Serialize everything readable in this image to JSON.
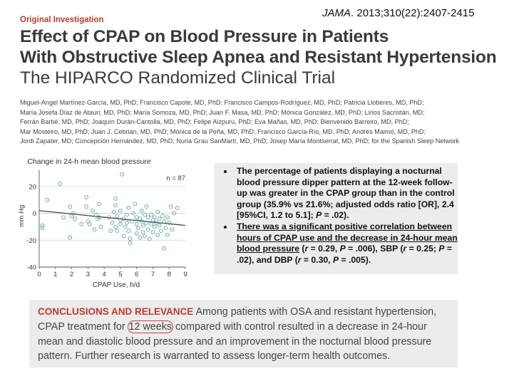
{
  "header": {
    "label": "Original Investigation",
    "citation_journal": "JAMA",
    "citation_rest": ". 2013;310(22):2407-2415",
    "title_line1": "Effect of CPAP on Blood Pressure in Patients",
    "title_line2": "With Obstructive Sleep Apnea and Resistant Hypertension",
    "subtitle": "The HIPARCO Randomized Clinical Trial"
  },
  "authors": [
    "Miguel-Angel Martínez-García, MD, PhD; Francisco Capote, MD, PhD; Francisco Campos-Rodríguez, MD, PhD; Patricia Lloberes, MD, PhD;",
    "María Josefa Díaz de Atauri, MD, PhD; María Somoza, MD, PhD; Juan F. Masa, MD, PhD; Mónica González, MD, PhD; Lirios Sacristán, MD;",
    "Ferrán Barbé, MD, PhD; Joaquín Durán-Cantolla, MD, PhD; Felipe Aizpuru, PhD; Eva Mañas, MD, PhD; Bienvenido Barreiro, MD, PhD;",
    "Mar Mosteiro, MD, PhD; Juan J. Cebrián, MD, PhD; Mónica de la Peña, MD, PhD; Francisco García-Río, MD, PhD; Andrés Maimó, MD, PhD;",
    "Jordi Zapater, MD; Concepción Hernández, MD, PhD; Nuria Grau SanMartí, MD, PhD; Josep María Montserrat, MD, PhD; for the Spanish Sleep Network"
  ],
  "bullets": [
    {
      "parts": [
        {
          "text": "The percentage of patients displaying a nocturnal blood pressure dipper pattern at the 12-week follow-up was greater in the CPAP group than in the control group (35.9% vs 21.6%; adjusted odds ratio [OR], 2.4 [95%CI, 1.2 to 5.1]; ",
          "ul": false
        },
        {
          "text": "P",
          "ul": false,
          "it": true
        },
        {
          "text": " = .02).",
          "ul": false
        }
      ]
    },
    {
      "parts": [
        {
          "text": "There was a significant positive correlation between hours of CPAP use and the decrease in 24-hour mean blood pressure",
          "ul": true
        },
        {
          "text": " (",
          "ul": false
        },
        {
          "text": "r",
          "ul": false,
          "it": true
        },
        {
          "text": " = 0.29, ",
          "ul": false
        },
        {
          "text": "P",
          "ul": false,
          "it": true
        },
        {
          "text": " = .006), SBP (",
          "ul": false
        },
        {
          "text": "r",
          "ul": false,
          "it": true
        },
        {
          "text": " = 0.25; ",
          "ul": false
        },
        {
          "text": "P",
          "ul": false,
          "it": true
        },
        {
          "text": " = .02), and DBP (",
          "ul": false
        },
        {
          "text": "r",
          "ul": false,
          "it": true
        },
        {
          "text": " = 0.30, ",
          "ul": false
        },
        {
          "text": "P",
          "ul": false,
          "it": true
        },
        {
          "text": " = .005).",
          "ul": false
        }
      ]
    }
  ],
  "conclusion": {
    "heading": "CONCLUSIONS AND RELEVANCE",
    "text_before": " Among patients with OSA and resistant hypertension, CPAP treatment for ",
    "highlight": "12 weeks",
    "text_after": " compared with control resulted in a decrease in 24-hour mean and diastolic blood pressure and an improvement in the nocturnal blood pressure pattern. Further research is warranted to assess longer-term health outcomes."
  },
  "colors": {
    "accent_red": "#c0392b",
    "box_gray": "#ececec",
    "point_stroke": "#5f9ea0",
    "regression_line": "#333333"
  },
  "chart_data": {
    "type": "scatter",
    "title": "Change in 24-h mean blood pressure",
    "xlabel": "CPAP Use, h/d",
    "ylabel": "mm Hg",
    "annotation": "n = 87",
    "xlim": [
      0,
      9
    ],
    "ylim": [
      -40,
      30
    ],
    "xticks": [
      0,
      1,
      2,
      3,
      4,
      5,
      6,
      7,
      8,
      9
    ],
    "yticks": [
      -40,
      -20,
      0,
      20
    ],
    "grid": true,
    "regression_line": {
      "x": [
        0,
        9
      ],
      "y": [
        2,
        -9
      ]
    },
    "points": [
      [
        0.2,
        -9
      ],
      [
        0.2,
        -11
      ],
      [
        0.5,
        10
      ],
      [
        1.3,
        22
      ],
      [
        1.5,
        -3
      ],
      [
        1.9,
        5
      ],
      [
        1.9,
        -18
      ],
      [
        2.1,
        0
      ],
      [
        2.0,
        -2
      ],
      [
        2.2,
        -4
      ],
      [
        2.9,
        12
      ],
      [
        2.9,
        5
      ],
      [
        3.0,
        -6
      ],
      [
        3.1,
        -8
      ],
      [
        3.3,
        2
      ],
      [
        3.5,
        -1
      ],
      [
        3.6,
        -4
      ],
      [
        3.7,
        7
      ],
      [
        3.8,
        -10
      ],
      [
        3.7,
        -3
      ],
      [
        4.4,
        -13
      ],
      [
        4.5,
        -7
      ],
      [
        4.6,
        1
      ],
      [
        4.7,
        11
      ],
      [
        4.7,
        6
      ],
      [
        4.7,
        -10
      ],
      [
        4.8,
        -2
      ],
      [
        4.8,
        -13
      ],
      [
        5.0,
        -5
      ],
      [
        5.0,
        2
      ],
      [
        5.0,
        -8
      ],
      [
        5.1,
        29
      ],
      [
        5.2,
        -17
      ],
      [
        5.2,
        -4
      ],
      [
        5.3,
        -10
      ],
      [
        5.4,
        -1
      ],
      [
        5.5,
        4
      ],
      [
        5.5,
        -13
      ],
      [
        5.6,
        -19
      ],
      [
        5.6,
        -22
      ],
      [
        5.7,
        -6
      ],
      [
        5.8,
        0
      ],
      [
        5.9,
        7
      ],
      [
        6.0,
        -3
      ],
      [
        6.0,
        -8
      ],
      [
        6.0,
        -15
      ],
      [
        6.1,
        -11
      ],
      [
        6.2,
        -4
      ],
      [
        6.3,
        2
      ],
      [
        6.3,
        -6
      ],
      [
        6.4,
        -9
      ],
      [
        6.4,
        -14
      ],
      [
        6.5,
        -1
      ],
      [
        6.5,
        -17
      ],
      [
        6.6,
        5
      ],
      [
        6.6,
        -7
      ],
      [
        6.7,
        -3
      ],
      [
        6.7,
        -12
      ],
      [
        6.8,
        -19
      ],
      [
        6.9,
        -8
      ],
      [
        6.9,
        -1
      ],
      [
        7.0,
        -5
      ],
      [
        7.0,
        -14
      ],
      [
        7.1,
        -10
      ],
      [
        7.1,
        -3
      ],
      [
        7.2,
        -7
      ],
      [
        7.3,
        -16
      ],
      [
        7.3,
        1
      ],
      [
        7.4,
        -9
      ],
      [
        7.4,
        -4
      ],
      [
        7.5,
        -13
      ],
      [
        7.6,
        -2
      ],
      [
        7.7,
        -6
      ],
      [
        7.7,
        -26
      ],
      [
        7.8,
        -11
      ],
      [
        7.9,
        -3
      ],
      [
        8.0,
        -7
      ],
      [
        8.1,
        5
      ],
      [
        8.2,
        -12
      ],
      [
        8.3,
        0
      ],
      [
        8.5,
        4
      ],
      [
        7.9,
        -16
      ],
      [
        6.2,
        -18
      ],
      [
        4.3,
        -3
      ],
      [
        3.4,
        -12
      ],
      [
        2.6,
        -8
      ],
      [
        5.4,
        -7
      ]
    ]
  }
}
